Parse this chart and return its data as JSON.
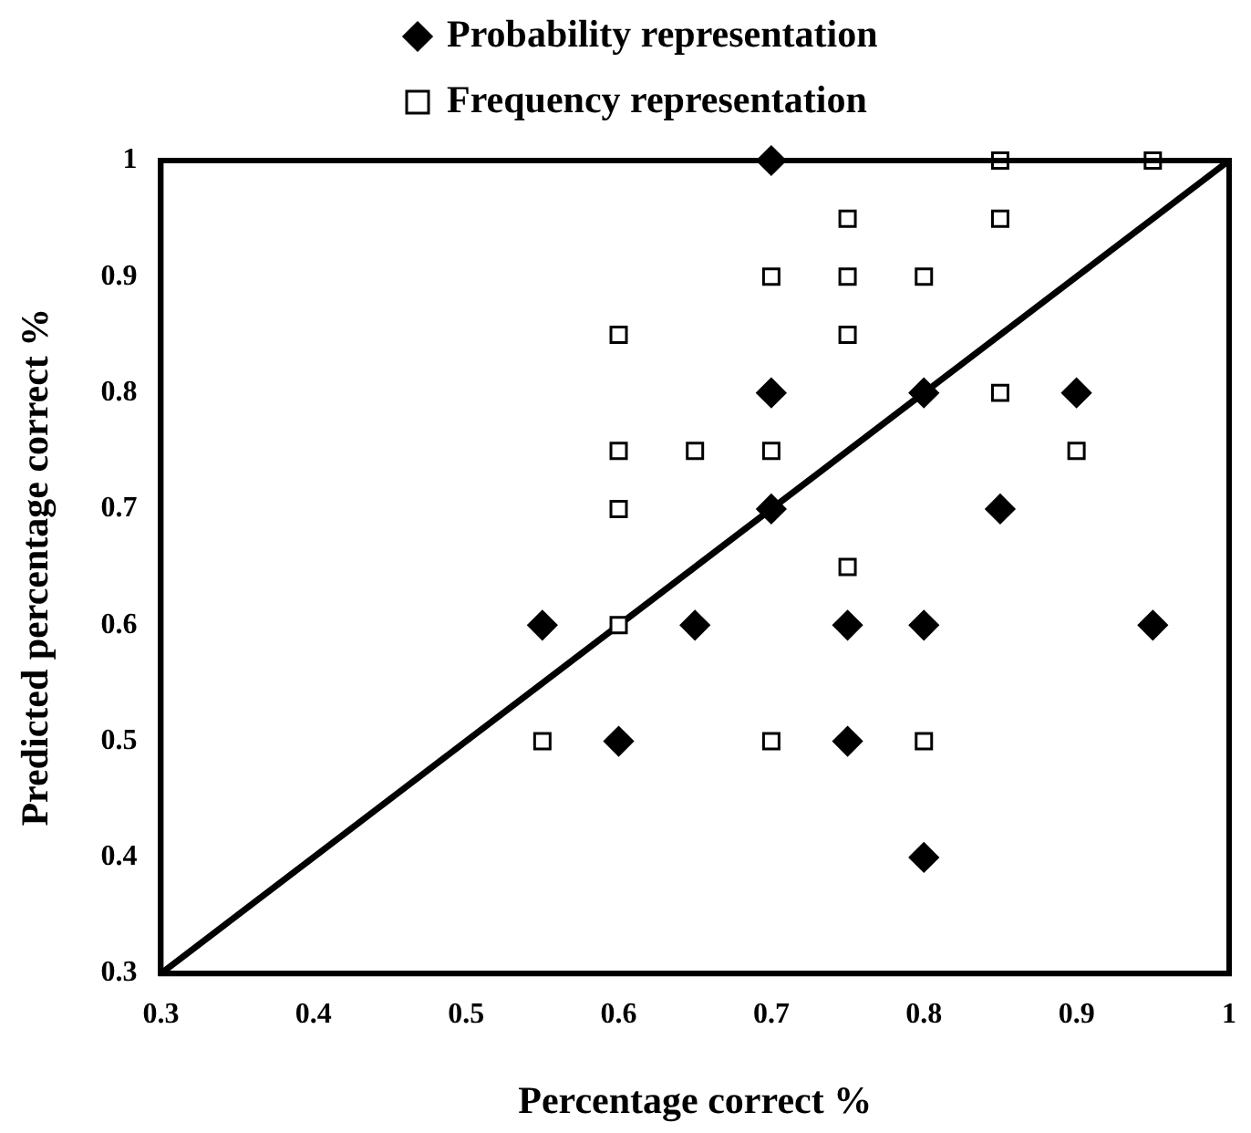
{
  "chart_data": {
    "type": "scatter",
    "xlabel": "Percentage correct %",
    "ylabel": "Predicted percentage correct %",
    "xlim": [
      0.3,
      1
    ],
    "xticks": [
      0.3,
      0.4,
      0.5,
      0.6,
      0.7,
      0.8,
      0.9,
      1
    ],
    "ylim": [
      0.3,
      1
    ],
    "yticks": [
      0.3,
      0.4,
      0.5,
      0.6,
      0.7,
      0.8,
      0.9,
      1
    ],
    "grid": false,
    "legend": "top",
    "series": [
      {
        "name": "Probability representation",
        "color": "#000000",
        "marker": "diamond",
        "x": [
          0.7,
          0.7,
          0.8,
          0.9,
          0.7,
          0.85,
          0.55,
          0.65,
          0.75,
          0.8,
          0.95,
          0.6,
          0.75,
          0.8
        ],
        "values": [
          1.0,
          0.8,
          0.8,
          0.8,
          0.7,
          0.7,
          0.6,
          0.6,
          0.6,
          0.6,
          0.6,
          0.5,
          0.5,
          0.4
        ]
      },
      {
        "name": "Frequency representation",
        "color": "#000000",
        "marker": "square",
        "x": [
          0.85,
          0.95,
          0.75,
          0.85,
          0.7,
          0.75,
          0.8,
          0.6,
          0.75,
          0.85,
          0.6,
          0.65,
          0.7,
          0.9,
          0.6,
          0.75,
          0.6,
          0.55,
          0.7,
          0.8
        ],
        "values": [
          1.0,
          1.0,
          0.95,
          0.95,
          0.9,
          0.9,
          0.9,
          0.85,
          0.85,
          0.8,
          0.75,
          0.75,
          0.75,
          0.75,
          0.7,
          0.65,
          0.6,
          0.5,
          0.5,
          0.5
        ]
      },
      {
        "type": "line",
        "color": "#000000",
        "marker": "none",
        "x": [
          0.3,
          1
        ],
        "values": [
          0.3,
          1
        ]
      }
    ]
  }
}
